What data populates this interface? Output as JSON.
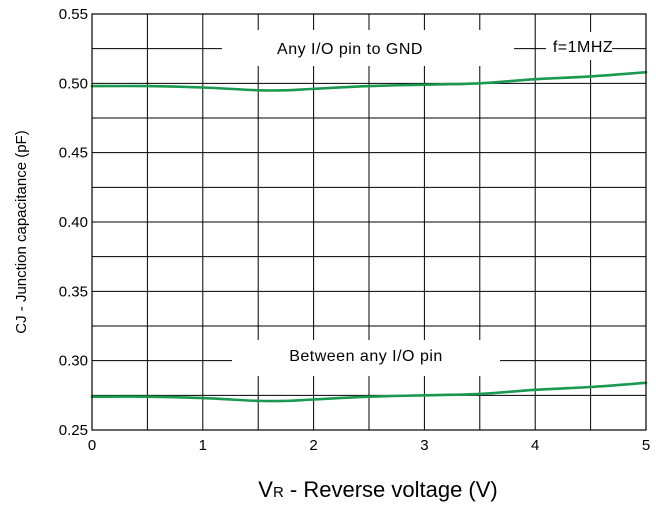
{
  "chart_data": {
    "type": "line",
    "title": "",
    "xlabel": "V",
    "xlabel_sub": "R",
    "xlabel_rest": " - Reverse voltage (V)",
    "ylabel": "CJ - Junction capacitance (pF)",
    "xlim": [
      0,
      5
    ],
    "ylim": [
      0.25,
      0.55
    ],
    "x_ticks": [
      0,
      1,
      2,
      3,
      4,
      5
    ],
    "x_tick_labels": [
      "0",
      "1",
      "2",
      "3",
      "4",
      "5"
    ],
    "y_ticks": [
      0.25,
      0.3,
      0.35,
      0.4,
      0.45,
      0.5,
      0.55
    ],
    "y_tick_labels": [
      "0.25",
      "0.30",
      "0.35",
      "0.40",
      "0.45",
      "0.50",
      "0.55"
    ],
    "x_grid_step": 0.5,
    "y_grid_step": 0.025,
    "grid": true,
    "series_color": "#1a9a50",
    "series": [
      {
        "annotation": "Any I/O  pin to GND",
        "x": [
          0,
          0.5,
          1.0,
          1.5,
          1.75,
          2.0,
          2.5,
          3.0,
          3.5,
          4.0,
          4.5,
          5.0
        ],
        "y": [
          0.498,
          0.498,
          0.497,
          0.495,
          0.495,
          0.496,
          0.498,
          0.499,
          0.5,
          0.503,
          0.505,
          0.508
        ]
      },
      {
        "annotation": "Between any I/O pin",
        "x": [
          0,
          0.5,
          1.0,
          1.5,
          1.75,
          2.0,
          2.5,
          3.0,
          3.5,
          4.0,
          4.5,
          5.0
        ],
        "y": [
          0.274,
          0.274,
          0.273,
          0.271,
          0.271,
          0.272,
          0.274,
          0.275,
          0.276,
          0.279,
          0.281,
          0.284
        ]
      }
    ],
    "annotations": {
      "top": "Any I/O  pin to GND",
      "bottom": "Between any I/O pin",
      "freq": "f=1MHZ"
    }
  }
}
